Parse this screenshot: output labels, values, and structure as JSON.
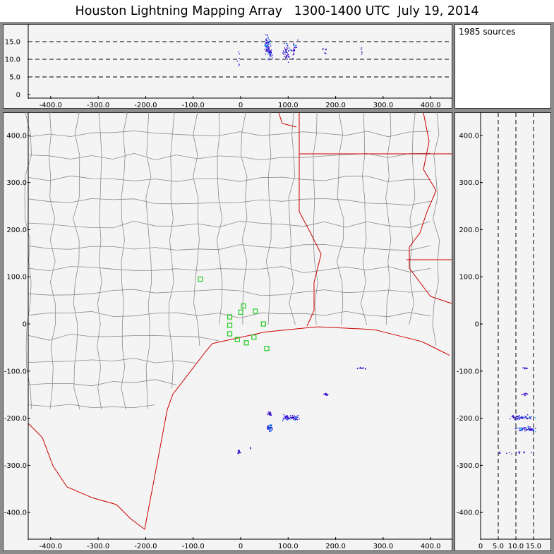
{
  "title": "Houston Lightning Mapping Array   1300-1400 UTC  July 19, 2014",
  "source_count_label": "1985 sources",
  "colors": {
    "background": "#f4f4f4",
    "frame": "#8c8c8c",
    "county_lines": "#8a8a8a",
    "state_lines": "#cc0000",
    "stations": "#22cc22",
    "sources_low": "#3300cc",
    "sources_high": "#00b0ff"
  },
  "chart_data": [
    {
      "type": "scatter",
      "panel": "altitude-vs-east-west",
      "xlim": [
        -450,
        450
      ],
      "ylim": [
        0,
        20
      ],
      "x_ticks": [
        "-400.0",
        "-300.0",
        "-200.0",
        "-100.0",
        "0",
        "100.0",
        "200.0",
        "300.0",
        "400.0"
      ],
      "y_ticks": [
        "0",
        "5.0",
        "10.0",
        "15.0"
      ],
      "dashed_levels": [
        5,
        10,
        15
      ],
      "clusters": [
        {
          "x": 55,
          "y": 14.2,
          "spread_x": 6,
          "spread_y": 2.5,
          "count": 70,
          "color_mix": 0.3
        },
        {
          "x": 60,
          "y": 12.0,
          "spread_x": 4,
          "spread_y": 2.0,
          "count": 30,
          "color_mix": 0.1
        },
        {
          "x": 95,
          "y": 12.5,
          "spread_x": 8,
          "spread_y": 3.0,
          "count": 40,
          "color_mix": 0.05
        },
        {
          "x": 112,
          "y": 12.5,
          "spread_x": 6,
          "spread_y": 3.0,
          "count": 25,
          "color_mix": 0.05
        },
        {
          "x": 178,
          "y": 12.5,
          "spread_x": 5,
          "spread_y": 1.0,
          "count": 8,
          "color_mix": 0
        },
        {
          "x": 255,
          "y": 12.5,
          "spread_x": 5,
          "spread_y": 1.0,
          "count": 5,
          "color_mix": 0
        },
        {
          "x": -5,
          "y": 10.0,
          "spread_x": 3,
          "spread_y": 3.0,
          "count": 6,
          "color_mix": 0
        }
      ]
    },
    {
      "type": "scatter",
      "panel": "plan-view",
      "xlim": [
        -450,
        450
      ],
      "ylim": [
        -450,
        450
      ],
      "x_ticks": [
        "-400.0",
        "-300.0",
        "-200.0",
        "-100.0",
        "0",
        "100.0",
        "200.0",
        "300.0",
        "400.0"
      ],
      "y_ticks": [
        "-400.0",
        "-300.0",
        "-200.0",
        "-100.0",
        "0",
        "100.0",
        "200.0",
        "300.0",
        "400.0"
      ],
      "stations": [
        [
          -85,
          95
        ],
        [
          -23,
          15
        ],
        [
          6,
          38
        ],
        [
          31,
          27
        ],
        [
          0,
          25
        ],
        [
          -23,
          -3
        ],
        [
          -23,
          -21
        ],
        [
          -7,
          -33
        ],
        [
          12,
          -40
        ],
        [
          28,
          -28
        ],
        [
          48,
          0
        ],
        [
          55,
          -52
        ]
      ],
      "clusters": [
        {
          "x": 60,
          "y": -220,
          "spread_x": 6,
          "spread_y": 7,
          "count": 55,
          "color_mix": 0.4
        },
        {
          "x": 60,
          "y": -190,
          "spread_x": 4,
          "spread_y": 6,
          "count": 20,
          "color_mix": 0.1
        },
        {
          "x": 95,
          "y": -198,
          "spread_x": 10,
          "spread_y": 5,
          "count": 40,
          "color_mix": 0.3
        },
        {
          "x": 113,
          "y": -198,
          "spread_x": 7,
          "spread_y": 5,
          "count": 30,
          "color_mix": 0.1
        },
        {
          "x": 178,
          "y": -148,
          "spread_x": 6,
          "spread_y": 3,
          "count": 15,
          "color_mix": 0.1
        },
        {
          "x": 252,
          "y": -93,
          "spread_x": 10,
          "spread_y": 2,
          "count": 12,
          "color_mix": 0
        },
        {
          "x": -5,
          "y": -272,
          "spread_x": 3,
          "spread_y": 6,
          "count": 15,
          "color_mix": 0.1
        },
        {
          "x": 20,
          "y": -262,
          "spread_x": 2,
          "spread_y": 2,
          "count": 3,
          "color_mix": 0
        }
      ]
    },
    {
      "type": "scatter",
      "panel": "north-south-vs-altitude",
      "xlim": [
        0,
        20
      ],
      "ylim": [
        -450,
        450
      ],
      "x_ticks": [
        "0",
        "5.0",
        "10.0",
        "15.0"
      ],
      "y_ticks": [
        "-400.0",
        "-300.0",
        "-200.0",
        "-100.0",
        "0",
        "100.0",
        "200.0",
        "300.0",
        "400.0"
      ],
      "dashed_levels": [
        5,
        10,
        15
      ],
      "clusters": [
        {
          "x": 13.0,
          "y": -222,
          "spread_x": 2.8,
          "spread_y": 5,
          "count": 60,
          "color_mix": 0.35
        },
        {
          "x": 11.0,
          "y": -197,
          "spread_x": 3.5,
          "spread_y": 5,
          "count": 60,
          "color_mix": 0.2
        },
        {
          "x": 12.5,
          "y": -148,
          "spread_x": 1.0,
          "spread_y": 3,
          "count": 10,
          "color_mix": 0
        },
        {
          "x": 12.5,
          "y": -93,
          "spread_x": 1.0,
          "spread_y": 2,
          "count": 8,
          "color_mix": 0
        },
        {
          "x": 10.0,
          "y": -272,
          "spread_x": 5.0,
          "spread_y": 2,
          "count": 15,
          "color_mix": 0
        }
      ]
    }
  ]
}
